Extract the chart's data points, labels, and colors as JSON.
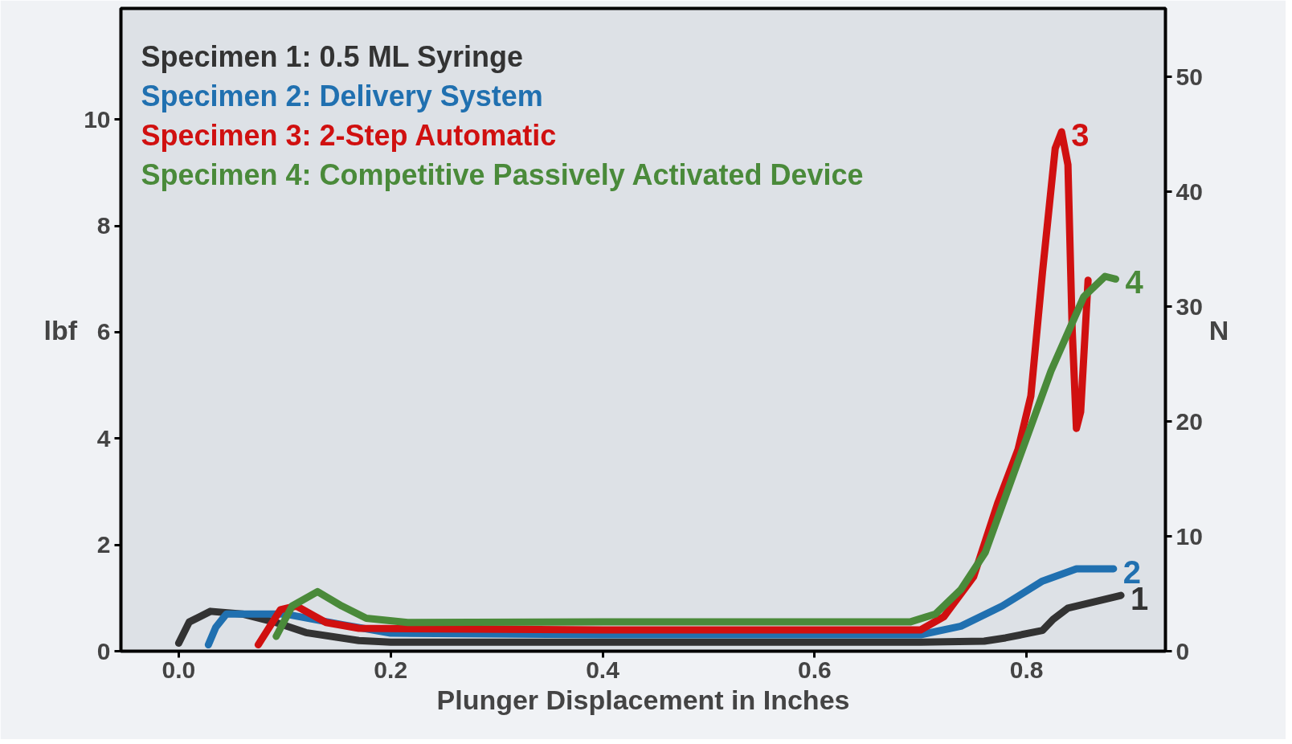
{
  "chart_data": {
    "type": "line",
    "xlabel": "Plunger Displacement in Inches",
    "ylabel": "lbf",
    "y2label": "N",
    "xlim": [
      -0.0545,
      0.931
    ],
    "ylim": [
      0,
      12.09
    ],
    "y2lim": [
      0,
      55.95
    ],
    "xticks": [
      {
        "value": 0,
        "label": "0.0"
      },
      {
        "value": 0.2,
        "label": "0.2"
      },
      {
        "value": 0.4,
        "label": "0.4"
      },
      {
        "value": 0.6,
        "label": "0.6"
      },
      {
        "value": 0.8,
        "label": "0.8"
      }
    ],
    "yticks": [
      0,
      2,
      4,
      6,
      8,
      10
    ],
    "y2ticks": [
      0,
      10,
      20,
      30,
      40,
      50
    ],
    "grid": false,
    "legend": "top left",
    "marker": "none",
    "line_style": "solid",
    "series": [
      {
        "name": "Specimen 1:  0.5 ML Syringe",
        "color": "#333333",
        "x": [
          0.0,
          0.01,
          0.03,
          0.06,
          0.09,
          0.12,
          0.17,
          0.2,
          0.4,
          0.6,
          0.7,
          0.76,
          0.78,
          0.815,
          0.825,
          0.839,
          0.889
        ],
        "values": [
          0.15,
          0.55,
          0.75,
          0.7,
          0.55,
          0.35,
          0.2,
          0.17,
          0.17,
          0.17,
          0.17,
          0.19,
          0.25,
          0.39,
          0.6,
          0.81,
          1.05
        ]
      },
      {
        "name": "Specimen 2:  Delivery System",
        "color": "#2070b0",
        "x": [
          0.028,
          0.035,
          0.045,
          0.1,
          0.154,
          0.2,
          0.4,
          0.6,
          0.7,
          0.738,
          0.777,
          0.815,
          0.847,
          0.882
        ],
        "values": [
          0.12,
          0.45,
          0.7,
          0.7,
          0.5,
          0.34,
          0.31,
          0.31,
          0.31,
          0.47,
          0.85,
          1.32,
          1.55,
          1.55
        ]
      },
      {
        "name": "Specimen 3:  2-Step Automatic",
        "color": "#d01010",
        "x": [
          0.075,
          0.096,
          0.111,
          0.139,
          0.17,
          0.4,
          0.6,
          0.7,
          0.722,
          0.75,
          0.773,
          0.792,
          0.804,
          0.815,
          0.827,
          0.833,
          0.839,
          0.843,
          0.847,
          0.851,
          0.858
        ],
        "values": [
          0.12,
          0.78,
          0.85,
          0.54,
          0.43,
          0.4,
          0.4,
          0.4,
          0.65,
          1.4,
          2.8,
          3.8,
          4.8,
          7.13,
          9.46,
          9.77,
          9.15,
          6.05,
          4.19,
          4.5,
          6.98
        ]
      },
      {
        "name": "Specimen 4:  Competitive Passively Activated Device",
        "color": "#4a8a3a",
        "x": [
          0.092,
          0.107,
          0.131,
          0.154,
          0.177,
          0.216,
          0.4,
          0.6,
          0.69,
          0.714,
          0.738,
          0.761,
          0.792,
          0.823,
          0.854,
          0.874,
          0.884
        ],
        "values": [
          0.28,
          0.85,
          1.12,
          0.85,
          0.62,
          0.54,
          0.55,
          0.55,
          0.55,
          0.7,
          1.16,
          1.86,
          3.57,
          5.27,
          6.67,
          7.05,
          7.0
        ]
      }
    ],
    "annotations": [
      {
        "text": "1",
        "x": 0.889,
        "y": 1.05
      },
      {
        "text": "2",
        "x": 0.882,
        "y": 1.55
      },
      {
        "text": "3",
        "x": 0.833,
        "y": 9.77
      },
      {
        "text": "4",
        "x": 0.884,
        "y": 7.0
      }
    ]
  }
}
